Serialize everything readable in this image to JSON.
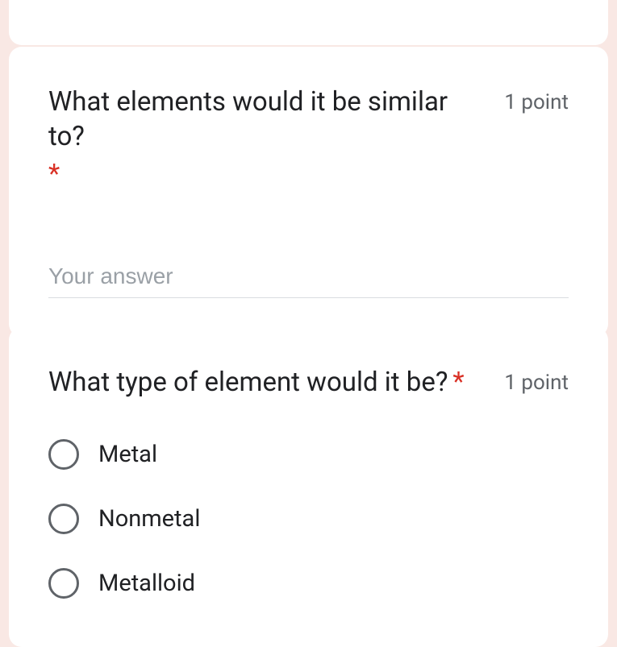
{
  "background_color": "#f9e8e4",
  "card_background": "#ffffff",
  "text_color": "#202124",
  "muted_color": "#5f6368",
  "required_color": "#d93025",
  "border_color": "#dadce0",
  "q1": {
    "title": "What elements would it be similar to?",
    "required": "*",
    "points": "1 point",
    "placeholder": "Your answer"
  },
  "q2": {
    "title": "What type of element would it be?",
    "required": "*",
    "points": "1 point",
    "options": [
      "Metal",
      "Nonmetal",
      "Metalloid"
    ]
  }
}
